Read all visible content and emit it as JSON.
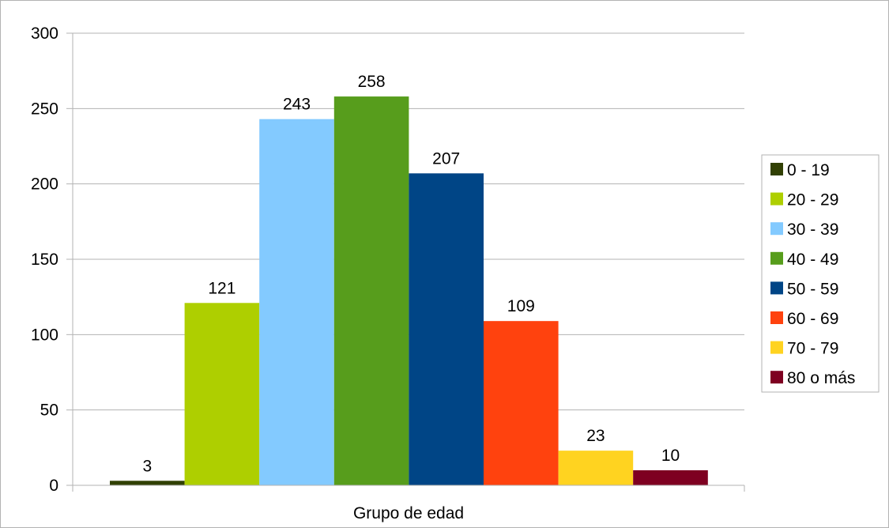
{
  "chart_data": {
    "type": "bar",
    "xlabel": "Grupo de edad",
    "ylabel": "",
    "ylim": [
      0,
      300
    ],
    "yticks": [
      0,
      50,
      100,
      150,
      200,
      250,
      300
    ],
    "grid": true,
    "legend_position": "right",
    "series": [
      {
        "name": "0 - 19",
        "value": 3,
        "label": "3",
        "color": "#314004"
      },
      {
        "name": "20 - 29",
        "value": 121,
        "label": "121",
        "color": "#aecf00"
      },
      {
        "name": "30 - 39",
        "value": 243,
        "label": "243",
        "color": "#83caff"
      },
      {
        "name": "40 - 49",
        "value": 258,
        "label": "258",
        "color": "#579d1c"
      },
      {
        "name": "50 - 59",
        "value": 207,
        "label": "207",
        "color": "#004586"
      },
      {
        "name": "60 - 69",
        "value": 109,
        "label": "109",
        "color": "#ff420e"
      },
      {
        "name": "70 - 79",
        "value": 23,
        "label": "23",
        "color": "#ffd320"
      },
      {
        "name": "80 o más",
        "value": 10,
        "label": "10",
        "color": "#7e0021"
      }
    ]
  }
}
